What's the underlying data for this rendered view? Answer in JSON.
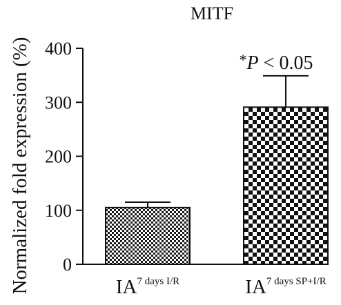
{
  "chart_data": {
    "type": "bar",
    "title": "MITF",
    "ylabel": "Normalized fold expression (%)",
    "xlabel": "",
    "ylim": [
      0,
      400
    ],
    "yticks": [
      0,
      100,
      200,
      300,
      400
    ],
    "categories": [
      {
        "main": "IA",
        "sup": "7 days I/R"
      },
      {
        "main": "IA",
        "sup": "7 days SP+I/R"
      }
    ],
    "values": [
      105,
      291
    ],
    "errors": [
      10,
      58
    ],
    "annotation": {
      "prefix": "*",
      "p": "P",
      "rest": " < 0.05"
    },
    "grid": false,
    "legend": "none",
    "bar_fill": [
      "fine-checker",
      "coarse-checker"
    ]
  }
}
